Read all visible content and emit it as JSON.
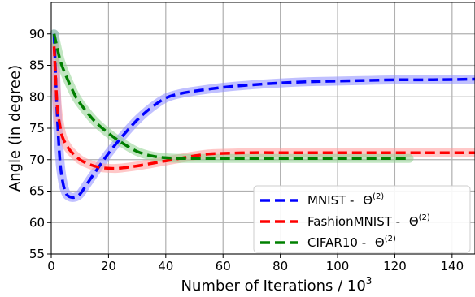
{
  "chart_data": {
    "type": "line",
    "title": "",
    "xlabel": "Number of Iterations / 10",
    "xlabel_sup": "3",
    "ylabel": "Angle (in degree)",
    "xlim": [
      0,
      148
    ],
    "ylim": [
      55,
      95
    ],
    "xticks": [
      0,
      20,
      40,
      60,
      80,
      100,
      120,
      140
    ],
    "yticks": [
      55,
      60,
      65,
      70,
      75,
      80,
      85,
      90
    ],
    "grid": true,
    "legend_position": "lower-right",
    "series": [
      {
        "name": "MNIST",
        "label_sep": " - ",
        "label_symbol": "Θ",
        "label_sup": "(2)",
        "color": "#0000ff",
        "band_color": "#8c8cff",
        "x": [
          1,
          2,
          3,
          4,
          5,
          6,
          8,
          10,
          12,
          15,
          20,
          25,
          30,
          35,
          40,
          45,
          50,
          60,
          70,
          80,
          90,
          100,
          110,
          120,
          130,
          140,
          148
        ],
        "y": [
          90,
          78,
          70,
          66.5,
          64.8,
          64.2,
          64,
          64.5,
          65.8,
          67.8,
          71,
          73.8,
          76.3,
          78.3,
          79.8,
          80.5,
          80.9,
          81.5,
          81.9,
          82.2,
          82.4,
          82.5,
          82.6,
          82.7,
          82.7,
          82.75,
          82.8
        ]
      },
      {
        "name": "FashionMNIST",
        "label_sep": " - ",
        "label_symbol": "Θ",
        "label_sup": "(2)",
        "color": "#ff0000",
        "band_color": "#ff9a9a",
        "x": [
          1,
          2,
          3,
          4,
          6,
          8,
          10,
          12,
          15,
          18,
          22,
          25,
          30,
          35,
          40,
          45,
          50,
          55,
          60,
          70,
          80,
          100,
          120,
          148
        ],
        "y": [
          88,
          79,
          75.5,
          73.5,
          71.8,
          70.8,
          70,
          69.5,
          69,
          68.7,
          68.6,
          68.7,
          69,
          69.4,
          69.8,
          70.2,
          70.6,
          70.9,
          71,
          71.1,
          71.1,
          71.1,
          71.1,
          71.1
        ]
      },
      {
        "name": "CIFAR10",
        "label_sep": " - ",
        "label_symbol": "Θ",
        "label_sup": "(2)",
        "color": "#008000",
        "band_color": "#8fd18f",
        "x": [
          1,
          3,
          5,
          8,
          10,
          15,
          20,
          25,
          30,
          35,
          40,
          45,
          50,
          60,
          80,
          100,
          125
        ],
        "y": [
          90,
          86,
          83.5,
          80.5,
          79,
          76.2,
          74.2,
          72.6,
          71.3,
          70.6,
          70.3,
          70.2,
          70.2,
          70.2,
          70.2,
          70.2,
          70.2
        ]
      }
    ]
  }
}
